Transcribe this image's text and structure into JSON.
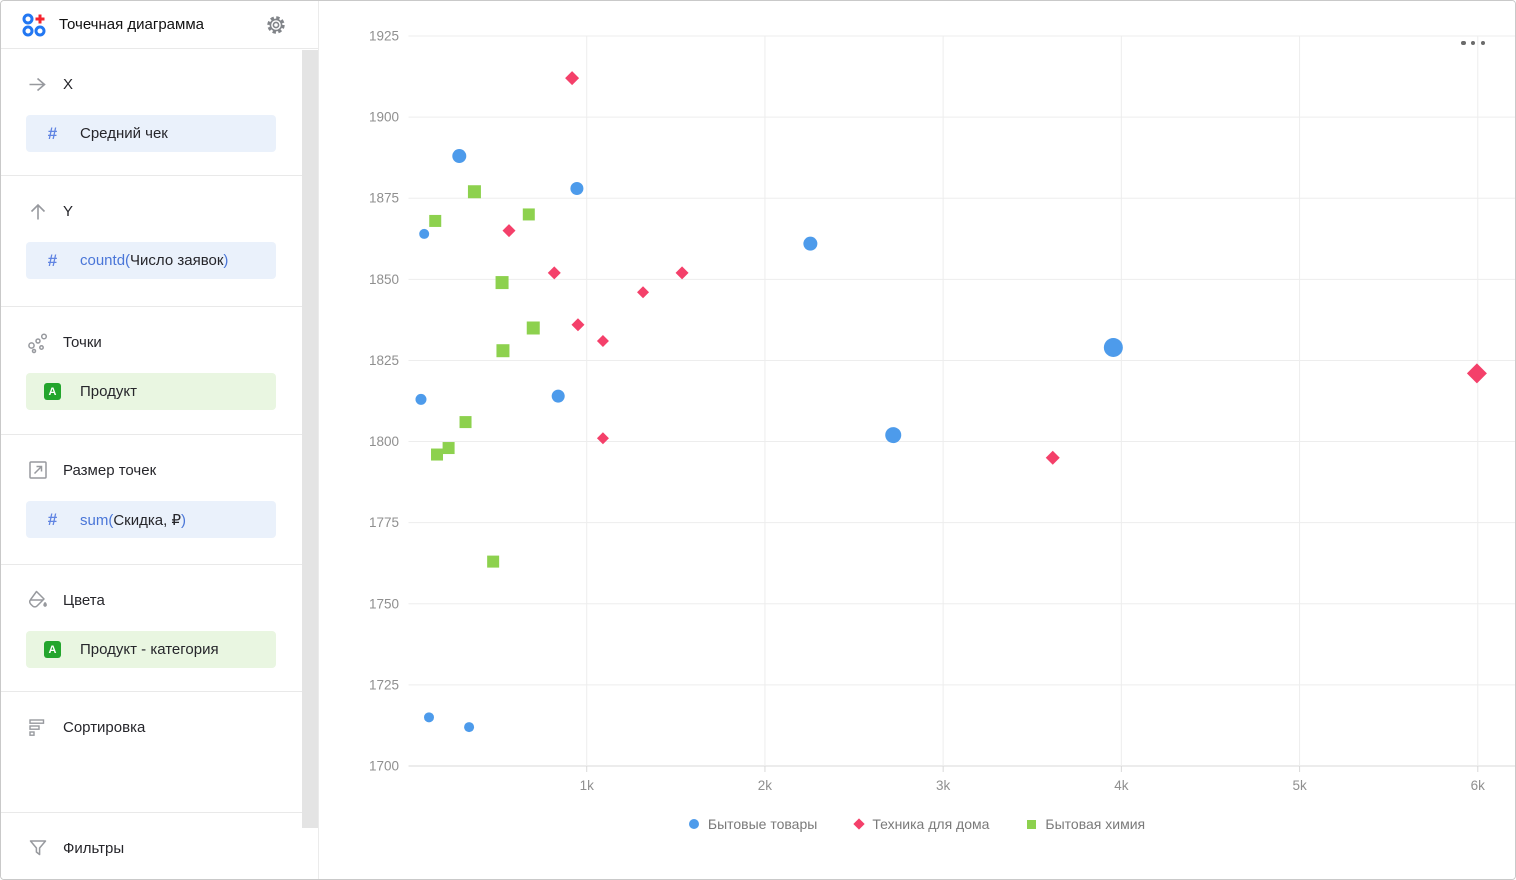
{
  "sidebar": {
    "title": "Точечная диаграмма",
    "sections": [
      {
        "label": "X"
      },
      {
        "label": "Y"
      },
      {
        "label": "Точки"
      },
      {
        "label": "Размер точек"
      },
      {
        "label": "Цвета"
      },
      {
        "label": "Сортировка"
      },
      {
        "label": "Фильтры"
      }
    ],
    "fields": {
      "x": {
        "prefix": "",
        "name": "Средний чек",
        "suffix": "",
        "kind": "measure"
      },
      "y": {
        "prefix": "countd(",
        "name": "Число заявок",
        "suffix": ")",
        "kind": "measure"
      },
      "points": {
        "prefix": "",
        "name": "Продукт",
        "suffix": "",
        "kind": "dimension"
      },
      "size": {
        "prefix": "sum(",
        "name": "Скидка, ₽",
        "suffix": ")",
        "kind": "measure"
      },
      "colors": {
        "prefix": "",
        "name": "Продукт - категория",
        "suffix": "",
        "kind": "dimension"
      }
    }
  },
  "chart_data": {
    "type": "scatter",
    "x_field": "Средний чек",
    "y_field": "countd(Число заявок)",
    "size_field": "sum(Скидка, ₽)",
    "color_field": "Продукт - категория",
    "xlim": [
      0,
      6210
    ],
    "ylim": [
      1700,
      1925
    ],
    "x_ticks": [
      "1k",
      "2k",
      "3k",
      "4k",
      "5k",
      "6k"
    ],
    "x_tick_values": [
      1000,
      2000,
      3000,
      4000,
      5000,
      6000
    ],
    "y_ticks": [
      1925,
      1900,
      1875,
      1850,
      1825,
      1800,
      1775,
      1750,
      1725,
      1700
    ],
    "grid": true,
    "legend_position": "bottom",
    "series": [
      {
        "name": "Бытовые товары",
        "marker": "circle",
        "color": "#4d9beb",
        "points": [
          {
            "x": 88,
            "y": 1864,
            "s": 5
          },
          {
            "x": 285,
            "y": 1888,
            "s": 7
          },
          {
            "x": 945,
            "y": 1878,
            "s": 6.5
          },
          {
            "x": 70,
            "y": 1813,
            "s": 5.5
          },
          {
            "x": 840,
            "y": 1814,
            "s": 6.5
          },
          {
            "x": 2255,
            "y": 1861,
            "s": 7
          },
          {
            "x": 2720,
            "y": 1802,
            "s": 8
          },
          {
            "x": 3955,
            "y": 1829,
            "s": 9.5
          },
          {
            "x": 115,
            "y": 1715,
            "s": 5
          },
          {
            "x": 340,
            "y": 1712,
            "s": 5
          }
        ]
      },
      {
        "name": "Техника для дома",
        "marker": "diamond",
        "color": "#f4406a",
        "points": [
          {
            "x": 918,
            "y": 1912,
            "s": 7
          },
          {
            "x": 564,
            "y": 1865,
            "s": 6.5
          },
          {
            "x": 818,
            "y": 1852,
            "s": 6.5
          },
          {
            "x": 1535,
            "y": 1852,
            "s": 6.5
          },
          {
            "x": 1316,
            "y": 1846,
            "s": 6
          },
          {
            "x": 951,
            "y": 1836,
            "s": 6.5
          },
          {
            "x": 1091,
            "y": 1831,
            "s": 6
          },
          {
            "x": 1091,
            "y": 1801,
            "s": 6
          },
          {
            "x": 3615,
            "y": 1795,
            "s": 7
          },
          {
            "x": 5995,
            "y": 1821,
            "s": 10
          }
        ]
      },
      {
        "name": "Бытовая химия",
        "marker": "square",
        "color": "#8dd14e",
        "points": [
          {
            "x": 370,
            "y": 1877,
            "s": 6.5
          },
          {
            "x": 150,
            "y": 1868,
            "s": 6
          },
          {
            "x": 675,
            "y": 1870,
            "s": 6
          },
          {
            "x": 525,
            "y": 1849,
            "s": 6.5
          },
          {
            "x": 700,
            "y": 1835,
            "s": 6.5
          },
          {
            "x": 530,
            "y": 1828,
            "s": 6.5
          },
          {
            "x": 320,
            "y": 1806,
            "s": 6
          },
          {
            "x": 225,
            "y": 1798,
            "s": 6
          },
          {
            "x": 160,
            "y": 1796,
            "s": 6
          },
          {
            "x": 475,
            "y": 1763,
            "s": 6
          }
        ]
      }
    ]
  },
  "ui_colors": {
    "accent_blue": "#4a76d8",
    "measure_pill_bg": "#eaf1fb",
    "dimension_pill_bg": "#e9f6e1",
    "dimension_badge": "#23a52d",
    "grid_line": "#ededed",
    "axis_line": "#d9d9d9",
    "tick_text": "#8f8f8f"
  }
}
